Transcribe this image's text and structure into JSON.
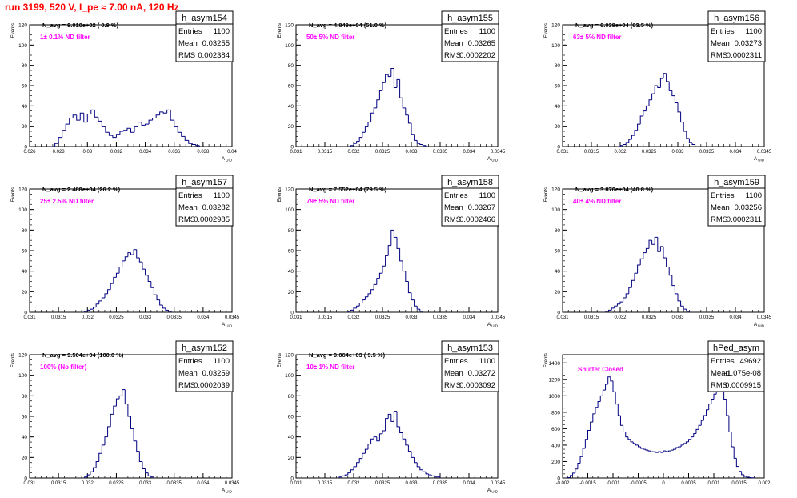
{
  "title": "run 3199,   520 V, I_pe ≈ 7.00 nA, 120 Hz",
  "colors": {
    "histogram": "#000080",
    "filter_note": "#ff00ff",
    "title": "#ff0000"
  },
  "stats_labels": {
    "entries": "Entries",
    "mean": "Mean",
    "rms": "RMS"
  },
  "chart_data": [
    {
      "type": "bar",
      "name": "h_asym154",
      "navg_text": "N_avg = 9.010e+02 ( 0.9 %)",
      "note": "1± 0.1% ND filter",
      "stats": {
        "entries": "1100",
        "mean": "0.03255",
        "rms": "0.002384"
      },
      "ylabel": "Events",
      "xlabel": "A_UID",
      "xlim": [
        0.026,
        0.04
      ],
      "ylim": [
        0,
        120
      ],
      "xticks": [
        0.026,
        0.028,
        0.03,
        0.032,
        0.034,
        0.036,
        0.038,
        0.04
      ],
      "xtick_labels": [
        "0.026",
        "0.028",
        "0.03",
        "0.032",
        "0.034",
        "0.036",
        "0.038",
        "0.04"
      ],
      "yticks": [
        0,
        20,
        40,
        60,
        80,
        100,
        120
      ],
      "ytick_labels": [
        "0",
        "20",
        "40",
        "60",
        "80",
        "100",
        "120"
      ],
      "bins": [
        0.0275,
        0.02775,
        0.028,
        0.02825,
        0.0285,
        0.02875,
        0.029,
        0.02925,
        0.0295,
        0.02975,
        0.03,
        0.03025,
        0.0305,
        0.03075,
        0.031,
        0.03125,
        0.0315,
        0.03175,
        0.032,
        0.03225,
        0.0325,
        0.03275,
        0.033,
        0.03325,
        0.0335,
        0.03375,
        0.034,
        0.03425,
        0.0345,
        0.03475,
        0.035,
        0.03525,
        0.0355,
        0.03575,
        0.036,
        0.03625,
        0.0365,
        0.03675,
        0.037,
        0.03725,
        0.0375
      ],
      "values": [
        0,
        3,
        9,
        16,
        22,
        28,
        31,
        26,
        33,
        24,
        32,
        36,
        29,
        25,
        20,
        14,
        11,
        9,
        12,
        15,
        16,
        18,
        14,
        20,
        24,
        21,
        22,
        26,
        28,
        31,
        34,
        33,
        36,
        26,
        20,
        14,
        10,
        6,
        3,
        2,
        1
      ]
    },
    {
      "type": "bar",
      "name": "h_asym155",
      "navg_text": "N_avg = 4.849e+04 (51.0 %)",
      "note": "50± 5% ND filter",
      "stats": {
        "entries": "1100",
        "mean": "0.03265",
        "rms": "0.0002202"
      },
      "ylabel": "Events",
      "xlabel": "A_UID",
      "xlim": [
        0.031,
        0.0345
      ],
      "ylim": [
        0,
        120
      ],
      "xticks": [
        0.031,
        0.0315,
        0.032,
        0.0325,
        0.033,
        0.0335,
        0.034,
        0.0345
      ],
      "xtick_labels": [
        "0.031",
        "0.0315",
        "0.032",
        "0.0325",
        "0.033",
        "0.0335",
        "0.034",
        "0.0345"
      ],
      "yticks": [
        0,
        20,
        40,
        60,
        80,
        100,
        120
      ],
      "ytick_labels": [
        "0",
        "20",
        "40",
        "60",
        "80",
        "100",
        "120"
      ],
      "bins": [
        0.03195,
        0.032,
        0.03205,
        0.0321,
        0.03215,
        0.0322,
        0.03225,
        0.0323,
        0.03235,
        0.0324,
        0.03245,
        0.0325,
        0.03255,
        0.0326,
        0.03265,
        0.0327,
        0.03275,
        0.0328,
        0.03285,
        0.0329,
        0.03295,
        0.033,
        0.03305,
        0.0331,
        0.03315,
        0.0332
      ],
      "values": [
        1,
        3,
        5,
        9,
        14,
        20,
        24,
        33,
        38,
        46,
        55,
        63,
        71,
        69,
        77,
        58,
        66,
        48,
        38,
        31,
        23,
        12,
        6,
        3,
        2,
        1
      ]
    },
    {
      "type": "bar",
      "name": "h_asym156",
      "navg_text": "N_avg = 6.039e+04 (63.5 %)",
      "note": "63± 5% ND filter",
      "stats": {
        "entries": "1100",
        "mean": "0.03273",
        "rms": "0.0002311"
      },
      "ylabel": "Events",
      "xlabel": "A_UID",
      "xlim": [
        0.031,
        0.0345
      ],
      "ylim": [
        0,
        120
      ],
      "xticks": [
        0.031,
        0.0315,
        0.032,
        0.0325,
        0.033,
        0.0335,
        0.034,
        0.0345
      ],
      "xtick_labels": [
        "0.031",
        "0.0315",
        "0.032",
        "0.0325",
        "0.033",
        "0.0335",
        "0.034",
        "0.0345"
      ],
      "yticks": [
        0,
        20,
        40,
        60,
        80,
        100,
        120
      ],
      "ytick_labels": [
        "0",
        "20",
        "40",
        "60",
        "80",
        "100",
        "120"
      ],
      "bins": [
        0.032,
        0.03205,
        0.0321,
        0.03215,
        0.0322,
        0.03225,
        0.0323,
        0.03235,
        0.0324,
        0.03245,
        0.0325,
        0.03255,
        0.0326,
        0.03265,
        0.0327,
        0.03275,
        0.0328,
        0.03285,
        0.0329,
        0.03295,
        0.033,
        0.03305,
        0.0331,
        0.03315,
        0.0332,
        0.03325
      ],
      "values": [
        1,
        2,
        4,
        7,
        11,
        16,
        22,
        30,
        35,
        40,
        46,
        52,
        60,
        58,
        67,
        72,
        64,
        55,
        50,
        43,
        34,
        24,
        15,
        8,
        4,
        2
      ]
    },
    {
      "type": "bar",
      "name": "h_asym157",
      "navg_text": "N_avg = 2.488e+04 (26.2 %)",
      "note": "25± 2.5% ND filter",
      "stats": {
        "entries": "1100",
        "mean": "0.03282",
        "rms": "0.0002985"
      },
      "ylabel": "Events",
      "xlabel": "A_UID",
      "xlim": [
        0.031,
        0.0345
      ],
      "ylim": [
        0,
        120
      ],
      "xticks": [
        0.031,
        0.0315,
        0.032,
        0.0325,
        0.033,
        0.0335,
        0.034,
        0.0345
      ],
      "xtick_labels": [
        "0.031",
        "0.0315",
        "0.032",
        "0.0325",
        "0.033",
        "0.0335",
        "0.034",
        "0.0345"
      ],
      "yticks": [
        0,
        20,
        40,
        60,
        80,
        100,
        120
      ],
      "ytick_labels": [
        "0",
        "20",
        "40",
        "60",
        "80",
        "100",
        "120"
      ],
      "bins": [
        0.03195,
        0.032,
        0.03205,
        0.0321,
        0.03215,
        0.0322,
        0.03225,
        0.0323,
        0.03235,
        0.0324,
        0.03245,
        0.0325,
        0.03255,
        0.0326,
        0.03265,
        0.0327,
        0.03275,
        0.0328,
        0.03285,
        0.0329,
        0.03295,
        0.033,
        0.03305,
        0.0331,
        0.03315,
        0.0332,
        0.03325,
        0.0333,
        0.03335,
        0.0334
      ],
      "values": [
        1,
        2,
        3,
        5,
        8,
        11,
        14,
        18,
        22,
        28,
        34,
        38,
        44,
        50,
        54,
        58,
        56,
        61,
        53,
        49,
        42,
        36,
        30,
        24,
        17,
        12,
        7,
        4,
        2,
        1
      ]
    },
    {
      "type": "bar",
      "name": "h_asym158",
      "navg_text": "N_avg = 7.552e+04 (79.5 %)",
      "note": "79± 5% ND filter",
      "stats": {
        "entries": "1100",
        "mean": "0.03267",
        "rms": "0.0002466"
      },
      "ylabel": "Events",
      "xlabel": "A_UID",
      "xlim": [
        0.031,
        0.0345
      ],
      "ylim": [
        0,
        120
      ],
      "xticks": [
        0.031,
        0.0315,
        0.032,
        0.0325,
        0.033,
        0.0335,
        0.034,
        0.0345
      ],
      "xtick_labels": [
        "0.031",
        "0.0315",
        "0.032",
        "0.0325",
        "0.033",
        "0.0335",
        "0.034",
        "0.0345"
      ],
      "yticks": [
        0,
        20,
        40,
        60,
        80,
        100,
        120
      ],
      "ytick_labels": [
        "0",
        "20",
        "40",
        "60",
        "80",
        "100",
        "120"
      ],
      "bins": [
        0.0319,
        0.03195,
        0.032,
        0.03205,
        0.0321,
        0.03215,
        0.0322,
        0.03225,
        0.0323,
        0.03235,
        0.0324,
        0.03245,
        0.0325,
        0.03255,
        0.0326,
        0.03265,
        0.0327,
        0.03275,
        0.0328,
        0.03285,
        0.0329,
        0.03295,
        0.033,
        0.03305,
        0.0331,
        0.03315
      ],
      "values": [
        1,
        2,
        4,
        6,
        9,
        12,
        15,
        18,
        22,
        27,
        33,
        38,
        45,
        55,
        65,
        80,
        73,
        62,
        50,
        40,
        30,
        19,
        12,
        6,
        3,
        1
      ]
    },
    {
      "type": "bar",
      "name": "h_asym159",
      "navg_text": "N_avg = 3.876e+04 (40.8 %)",
      "note": "40± 4% ND filter",
      "stats": {
        "entries": "1100",
        "mean": "0.03256",
        "rms": "0.0002311"
      },
      "ylabel": "Events",
      "xlabel": "A_UID",
      "xlim": [
        0.031,
        0.0345
      ],
      "ylim": [
        0,
        120
      ],
      "xticks": [
        0.031,
        0.0315,
        0.032,
        0.0325,
        0.033,
        0.0335,
        0.034,
        0.0345
      ],
      "xtick_labels": [
        "0.031",
        "0.0315",
        "0.032",
        "0.0325",
        "0.033",
        "0.0335",
        "0.034",
        "0.0345"
      ],
      "yticks": [
        0,
        20,
        40,
        60,
        80,
        100,
        120
      ],
      "ytick_labels": [
        "0",
        "20",
        "40",
        "60",
        "80",
        "100",
        "120"
      ],
      "bins": [
        0.03175,
        0.0318,
        0.03185,
        0.0319,
        0.03195,
        0.032,
        0.03205,
        0.0321,
        0.03215,
        0.0322,
        0.03225,
        0.0323,
        0.03235,
        0.0324,
        0.03245,
        0.0325,
        0.03255,
        0.0326,
        0.03265,
        0.0327,
        0.03275,
        0.0328,
        0.03285,
        0.0329,
        0.03295,
        0.033,
        0.03305,
        0.0331,
        0.03315
      ],
      "values": [
        1,
        2,
        4,
        6,
        8,
        10,
        14,
        18,
        24,
        31,
        38,
        46,
        52,
        58,
        62,
        70,
        66,
        73,
        59,
        64,
        53,
        44,
        36,
        26,
        18,
        11,
        6,
        3,
        1
      ]
    },
    {
      "type": "bar",
      "name": "h_asym152",
      "navg_text": "N_avg = 9.504e+04 (100.0 %)",
      "note": "100% (No filter)",
      "stats": {
        "entries": "1100",
        "mean": "0.03259",
        "rms": "0.0002039"
      },
      "ylabel": "Events",
      "xlabel": "A_UID",
      "xlim": [
        0.031,
        0.0345
      ],
      "ylim": [
        0,
        120
      ],
      "xticks": [
        0.031,
        0.0315,
        0.032,
        0.0325,
        0.033,
        0.0335,
        0.034,
        0.0345
      ],
      "xtick_labels": [
        "0.031",
        "0.0315",
        "0.032",
        "0.0325",
        "0.033",
        "0.0335",
        "0.034",
        "0.0345"
      ],
      "yticks": [
        0,
        20,
        40,
        60,
        80,
        100,
        120
      ],
      "ytick_labels": [
        "0",
        "20",
        "40",
        "60",
        "80",
        "100",
        "120"
      ],
      "bins": [
        0.03195,
        0.032,
        0.03205,
        0.0321,
        0.03215,
        0.0322,
        0.03225,
        0.0323,
        0.03235,
        0.0324,
        0.03245,
        0.0325,
        0.03255,
        0.0326,
        0.03265,
        0.0327,
        0.03275,
        0.0328,
        0.03285,
        0.0329,
        0.03295,
        0.033,
        0.03305,
        0.0331
      ],
      "values": [
        1,
        3,
        6,
        10,
        16,
        24,
        32,
        40,
        50,
        62,
        70,
        77,
        80,
        86,
        72,
        60,
        48,
        36,
        26,
        16,
        9,
        5,
        2,
        1
      ]
    },
    {
      "type": "bar",
      "name": "h_asym153",
      "navg_text": "N_avg = 9.064e+03 ( 9.5 %)",
      "note": "10± 1% ND filter",
      "stats": {
        "entries": "1100",
        "mean": "0.03272",
        "rms": "0.0003092"
      },
      "ylabel": "Events",
      "xlabel": "A_UID",
      "xlim": [
        0.031,
        0.0345
      ],
      "ylim": [
        0,
        120
      ],
      "xticks": [
        0.031,
        0.0315,
        0.032,
        0.0325,
        0.033,
        0.0335,
        0.034,
        0.0345
      ],
      "xtick_labels": [
        "0.031",
        "0.0315",
        "0.032",
        "0.0325",
        "0.033",
        "0.0335",
        "0.034",
        "0.0345"
      ],
      "yticks": [
        0,
        20,
        40,
        60,
        80,
        100,
        120
      ],
      "ytick_labels": [
        "0",
        "20",
        "40",
        "60",
        "80",
        "100",
        "120"
      ],
      "bins": [
        0.03175,
        0.0318,
        0.03185,
        0.0319,
        0.03195,
        0.032,
        0.03205,
        0.0321,
        0.03215,
        0.0322,
        0.03225,
        0.0323,
        0.03235,
        0.0324,
        0.03245,
        0.0325,
        0.03255,
        0.0326,
        0.03265,
        0.0327,
        0.03275,
        0.0328,
        0.03285,
        0.0329,
        0.03295,
        0.033,
        0.03305,
        0.0331,
        0.03315,
        0.0332,
        0.03325,
        0.0333,
        0.03335,
        0.0334,
        0.03345
      ],
      "values": [
        1,
        2,
        3,
        5,
        8,
        11,
        15,
        19,
        24,
        28,
        33,
        38,
        40,
        36,
        43,
        46,
        58,
        62,
        55,
        65,
        50,
        44,
        38,
        32,
        26,
        20,
        15,
        11,
        8,
        6,
        4,
        3,
        2,
        1,
        1
      ]
    },
    {
      "type": "bar",
      "name": "hPed_asym",
      "navg_text": "",
      "note": "Shutter Closed",
      "stats": {
        "entries": "49692",
        "mean": "-1.075e-08",
        "rms": "0.0009915"
      },
      "ylabel": "Events",
      "xlabel": "",
      "xlim": [
        -0.002,
        0.002
      ],
      "ylim": [
        0,
        1500
      ],
      "xticks": [
        -0.002,
        -0.0015,
        -0.001,
        -0.0005,
        0,
        0.0005,
        0.001,
        0.0015,
        0.002
      ],
      "xtick_labels": [
        "-0.002",
        "-0.0015",
        "-0.001",
        "-0.0005",
        "0",
        "0.0005",
        "0.001",
        "0.0015",
        "0.002"
      ],
      "yticks": [
        0,
        200,
        400,
        600,
        800,
        1000,
        1200,
        1400
      ],
      "ytick_labels": [
        "0",
        "200",
        "400",
        "600",
        "800",
        "1000",
        "1200",
        "1400"
      ],
      "bins": [
        -0.0019,
        -0.00185,
        -0.0018,
        -0.00175,
        -0.0017,
        -0.00165,
        -0.0016,
        -0.00155,
        -0.0015,
        -0.00145,
        -0.0014,
        -0.00135,
        -0.0013,
        -0.00125,
        -0.0012,
        -0.00115,
        -0.0011,
        -0.00105,
        -0.001,
        -0.00095,
        -0.0009,
        -0.00085,
        -0.0008,
        -0.00075,
        -0.0007,
        -0.00065,
        -0.0006,
        -0.00055,
        -0.0005,
        -0.00045,
        -0.0004,
        -0.00035,
        -0.0003,
        -0.00025,
        -0.0002,
        -0.00015,
        -0.0001,
        -5e-05,
        0,
        5e-05,
        0.0001,
        0.00015,
        0.0002,
        0.00025,
        0.0003,
        0.00035,
        0.0004,
        0.00045,
        0.0005,
        0.00055,
        0.0006,
        0.00065,
        0.0007,
        0.00075,
        0.0008,
        0.00085,
        0.0009,
        0.00095,
        0.001,
        0.00105,
        0.0011,
        0.00115,
        0.0012,
        0.00125,
        0.0013,
        0.00135,
        0.0014,
        0.00145,
        0.0015,
        0.00155,
        0.0016,
        0.00165,
        0.0017,
        0.00175
      ],
      "values": [
        5,
        30,
        60,
        110,
        180,
        260,
        360,
        470,
        580,
        680,
        780,
        860,
        930,
        1000,
        1070,
        1140,
        1230,
        1180,
        1050,
        900,
        760,
        640,
        560,
        500,
        470,
        440,
        420,
        400,
        380,
        360,
        350,
        340,
        330,
        320,
        320,
        310,
        320,
        310,
        330,
        320,
        330,
        340,
        350,
        370,
        380,
        400,
        420,
        440,
        470,
        500,
        540,
        590,
        640,
        700,
        760,
        830,
        900,
        960,
        1020,
        1080,
        1130,
        1090,
        960,
        760,
        560,
        380,
        240,
        140,
        80,
        40,
        20,
        10,
        5,
        2
      ]
    }
  ]
}
